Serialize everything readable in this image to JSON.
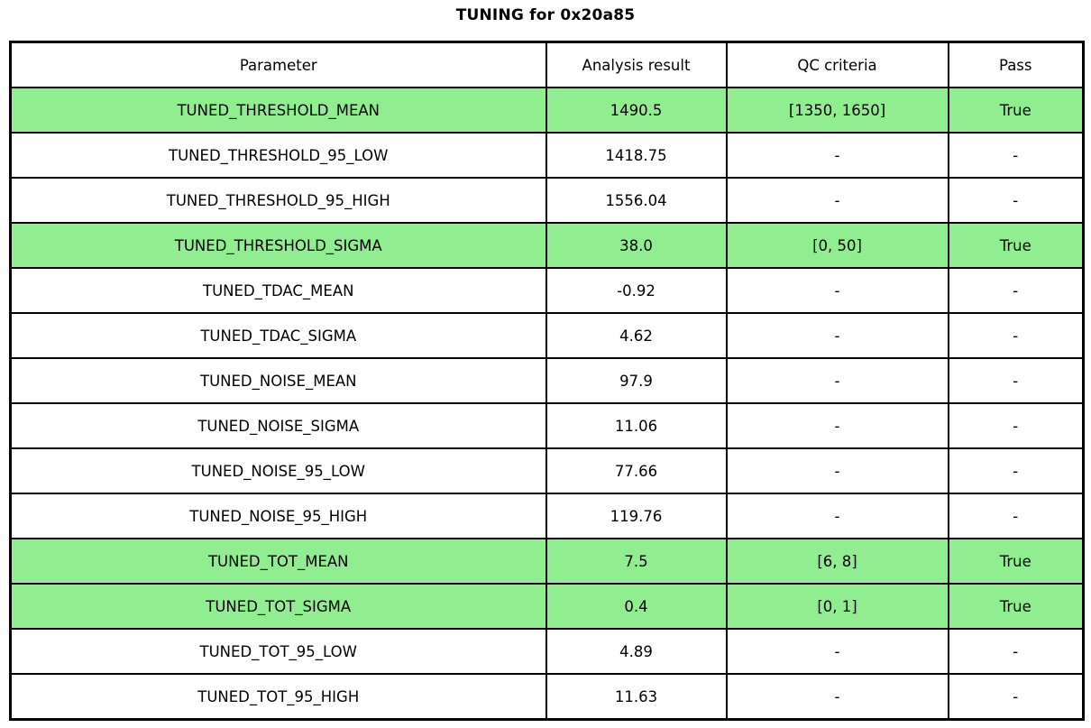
{
  "chart_data": {
    "type": "table",
    "title": "TUNING for 0x20a85",
    "columns": [
      "Parameter",
      "Analysis result",
      "QC criteria",
      "Pass"
    ],
    "rows": [
      {
        "parameter": "TUNED_THRESHOLD_MEAN",
        "result": "1490.5",
        "qc": "[1350, 1650]",
        "pass": "True",
        "highlight": true
      },
      {
        "parameter": "TUNED_THRESHOLD_95_LOW",
        "result": "1418.75",
        "qc": "-",
        "pass": "-",
        "highlight": false
      },
      {
        "parameter": "TUNED_THRESHOLD_95_HIGH",
        "result": "1556.04",
        "qc": "-",
        "pass": "-",
        "highlight": false
      },
      {
        "parameter": "TUNED_THRESHOLD_SIGMA",
        "result": "38.0",
        "qc": "[0, 50]",
        "pass": "True",
        "highlight": true
      },
      {
        "parameter": "TUNED_TDAC_MEAN",
        "result": "-0.92",
        "qc": "-",
        "pass": "-",
        "highlight": false
      },
      {
        "parameter": "TUNED_TDAC_SIGMA",
        "result": "4.62",
        "qc": "-",
        "pass": "-",
        "highlight": false
      },
      {
        "parameter": "TUNED_NOISE_MEAN",
        "result": "97.9",
        "qc": "-",
        "pass": "-",
        "highlight": false
      },
      {
        "parameter": "TUNED_NOISE_SIGMA",
        "result": "11.06",
        "qc": "-",
        "pass": "-",
        "highlight": false
      },
      {
        "parameter": "TUNED_NOISE_95_LOW",
        "result": "77.66",
        "qc": "-",
        "pass": "-",
        "highlight": false
      },
      {
        "parameter": "TUNED_NOISE_95_HIGH",
        "result": "119.76",
        "qc": "-",
        "pass": "-",
        "highlight": false
      },
      {
        "parameter": "TUNED_TOT_MEAN",
        "result": "7.5",
        "qc": "[6, 8]",
        "pass": "True",
        "highlight": true
      },
      {
        "parameter": "TUNED_TOT_SIGMA",
        "result": "0.4",
        "qc": "[0, 1]",
        "pass": "True",
        "highlight": true
      },
      {
        "parameter": "TUNED_TOT_95_LOW",
        "result": "4.89",
        "qc": "-",
        "pass": "-",
        "highlight": false
      },
      {
        "parameter": "TUNED_TOT_95_HIGH",
        "result": "11.63",
        "qc": "-",
        "pass": "-",
        "highlight": false
      }
    ],
    "highlighted_rows": [
      0,
      3,
      10,
      11
    ],
    "colors": {
      "highlight_green": "#90EE90",
      "border": "#000000",
      "background": "#ffffff",
      "text": "#000000"
    },
    "layout": {
      "grid": "full-borders",
      "legend": "none",
      "header_position": "top"
    }
  }
}
